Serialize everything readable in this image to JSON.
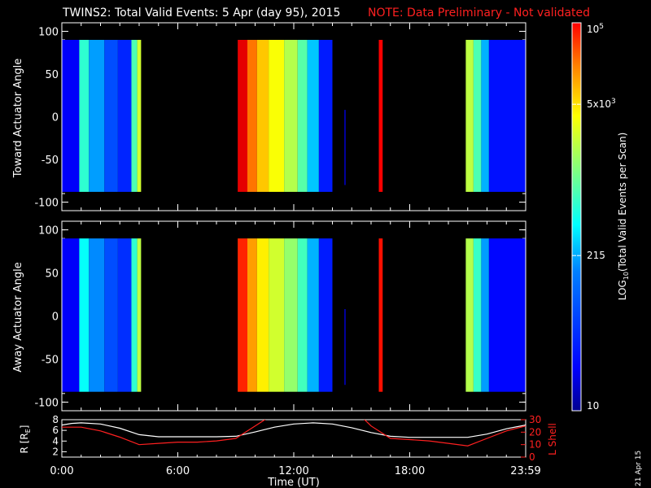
{
  "title": {
    "main": "TWINS2: Total Valid Events:  5 Apr (day  95), 2015",
    "note": "NOTE: Data Preliminary - Not validated"
  },
  "chart_data": [
    {
      "type": "heatmap",
      "name": "toward",
      "ylabel": "Toward Actuator Angle",
      "ylim": [
        -110,
        110
      ],
      "yticks": [
        100,
        50,
        0,
        -50,
        -100
      ],
      "angle_range": [
        -88,
        90
      ],
      "xlim_hours": [
        0,
        24
      ],
      "blocks": [
        {
          "t0": 0.0,
          "t1": 0.9,
          "level": 0.12
        },
        {
          "t0": 0.9,
          "t1": 1.4,
          "level": 0.42
        },
        {
          "t0": 1.4,
          "t1": 2.2,
          "level": 0.28
        },
        {
          "t0": 2.2,
          "t1": 2.9,
          "level": 0.2
        },
        {
          "t0": 2.9,
          "t1": 3.6,
          "level": 0.16
        },
        {
          "t0": 3.6,
          "t1": 3.9,
          "level": 0.45
        },
        {
          "t0": 3.9,
          "t1": 4.1,
          "level": 0.58
        },
        {
          "t0": 9.1,
          "t1": 9.6,
          "level": 0.9
        },
        {
          "t0": 9.6,
          "t1": 10.1,
          "level": 0.76
        },
        {
          "t0": 10.1,
          "t1": 10.7,
          "level": 0.68
        },
        {
          "t0": 10.7,
          "t1": 11.5,
          "level": 0.62
        },
        {
          "t0": 11.5,
          "t1": 12.2,
          "level": 0.55
        },
        {
          "t0": 12.2,
          "t1": 12.7,
          "level": 0.46
        },
        {
          "t0": 12.7,
          "t1": 13.3,
          "level": 0.32
        },
        {
          "t0": 13.3,
          "t1": 14.0,
          "level": 0.15
        },
        {
          "t0": 16.4,
          "t1": 16.6,
          "level": 0.88
        },
        {
          "t0": 20.9,
          "t1": 21.3,
          "level": 0.56
        },
        {
          "t0": 21.3,
          "t1": 21.7,
          "level": 0.45
        },
        {
          "t0": 21.7,
          "t1": 22.1,
          "level": 0.3
        },
        {
          "t0": 22.1,
          "t1": 24.0,
          "level": 0.14
        }
      ],
      "spike": {
        "t": 14.65,
        "a0": -80,
        "a1": 8,
        "level": 0.03
      }
    },
    {
      "type": "heatmap",
      "name": "away",
      "ylabel": "Away Actuator Angle",
      "ylim": [
        -110,
        110
      ],
      "yticks": [
        100,
        50,
        0,
        -50,
        -100
      ],
      "angle_range": [
        -88,
        90
      ],
      "xlim_hours": [
        0,
        24
      ],
      "blocks": [
        {
          "t0": 0.0,
          "t1": 0.9,
          "level": 0.12
        },
        {
          "t0": 0.9,
          "t1": 1.4,
          "level": 0.38
        },
        {
          "t0": 1.4,
          "t1": 2.2,
          "level": 0.26
        },
        {
          "t0": 2.2,
          "t1": 2.9,
          "level": 0.2
        },
        {
          "t0": 2.9,
          "t1": 3.6,
          "level": 0.17
        },
        {
          "t0": 3.6,
          "t1": 3.9,
          "level": 0.42
        },
        {
          "t0": 3.9,
          "t1": 4.1,
          "level": 0.56
        },
        {
          "t0": 9.1,
          "t1": 9.6,
          "level": 0.84
        },
        {
          "t0": 9.6,
          "t1": 10.1,
          "level": 0.72
        },
        {
          "t0": 10.1,
          "t1": 10.7,
          "level": 0.64
        },
        {
          "t0": 10.7,
          "t1": 11.5,
          "level": 0.58
        },
        {
          "t0": 11.5,
          "t1": 12.2,
          "level": 0.52
        },
        {
          "t0": 12.2,
          "t1": 12.7,
          "level": 0.44
        },
        {
          "t0": 12.7,
          "t1": 13.3,
          "level": 0.3
        },
        {
          "t0": 13.3,
          "t1": 14.0,
          "level": 0.15
        },
        {
          "t0": 16.4,
          "t1": 16.6,
          "level": 0.86
        },
        {
          "t0": 20.9,
          "t1": 21.3,
          "level": 0.55
        },
        {
          "t0": 21.3,
          "t1": 21.7,
          "level": 0.43
        },
        {
          "t0": 21.7,
          "t1": 22.1,
          "level": 0.28
        },
        {
          "t0": 22.1,
          "t1": 24.0,
          "level": 0.13
        }
      ],
      "spike": {
        "t": 14.65,
        "a0": -80,
        "a1": 8,
        "level": 0.03
      }
    },
    {
      "type": "line",
      "name": "orbit",
      "ylabel_left": "R [R",
      "ylabel_left_sub": "E",
      "ylabel_left_end": "]",
      "ylabel_right": "L Shell",
      "ylim_left": [
        1,
        8
      ],
      "yticks_left": [
        8,
        6,
        4,
        2
      ],
      "ylim_right": [
        0,
        30
      ],
      "yticks_right": [
        30,
        20,
        10,
        0
      ],
      "xlabel": "Time (UT)",
      "xtick_labels": [
        "0:00",
        "6:00",
        "12:00",
        "18:00",
        "23:59"
      ],
      "xtick_hours": [
        0,
        6,
        12,
        18,
        24
      ],
      "series": [
        {
          "name": "R",
          "axis": "left",
          "color": "#ffffff",
          "x": [
            0,
            0.5,
            1,
            2,
            3,
            4,
            5,
            6,
            7,
            8,
            9,
            10,
            11,
            12,
            13,
            14,
            15,
            16,
            17,
            18,
            19,
            20,
            21,
            22,
            23,
            24
          ],
          "y": [
            7.0,
            7.3,
            7.4,
            7.2,
            6.4,
            5.2,
            4.8,
            4.8,
            4.8,
            4.8,
            4.9,
            5.7,
            6.6,
            7.2,
            7.4,
            7.2,
            6.5,
            5.6,
            4.9,
            4.7,
            4.7,
            4.7,
            4.7,
            5.3,
            6.3,
            7.0
          ]
        },
        {
          "name": "L Shell",
          "axis": "right",
          "color": "#ff2020",
          "x": [
            0,
            1,
            2,
            3,
            4,
            5,
            6,
            7,
            8,
            9,
            10,
            10.6,
            15.6,
            16,
            17,
            18,
            19,
            20,
            21,
            22,
            23,
            24
          ],
          "y": [
            24,
            24,
            21,
            16,
            10,
            11,
            12,
            12,
            13,
            15,
            25,
            31,
            31,
            25,
            15,
            14,
            13,
            11,
            9,
            15,
            21,
            25
          ]
        }
      ]
    }
  ],
  "colorbar": {
    "label_main": "LOG",
    "label_sub": "10",
    "label_rest": "(Total Valid Events per Scan)",
    "ticks": [
      {
        "base": "10",
        "exp": "5",
        "level": 1.0
      },
      {
        "base": "5x10",
        "exp": "3",
        "level": 0.79
      },
      {
        "base": "215",
        "exp": "",
        "level": 0.4
      },
      {
        "base": "10",
        "exp": "",
        "level": 0.0
      }
    ]
  },
  "date_stamp": "21 Apr 15",
  "colors": {
    "axis": "#ffffff",
    "note": "#ff2020",
    "background": "#000000"
  }
}
